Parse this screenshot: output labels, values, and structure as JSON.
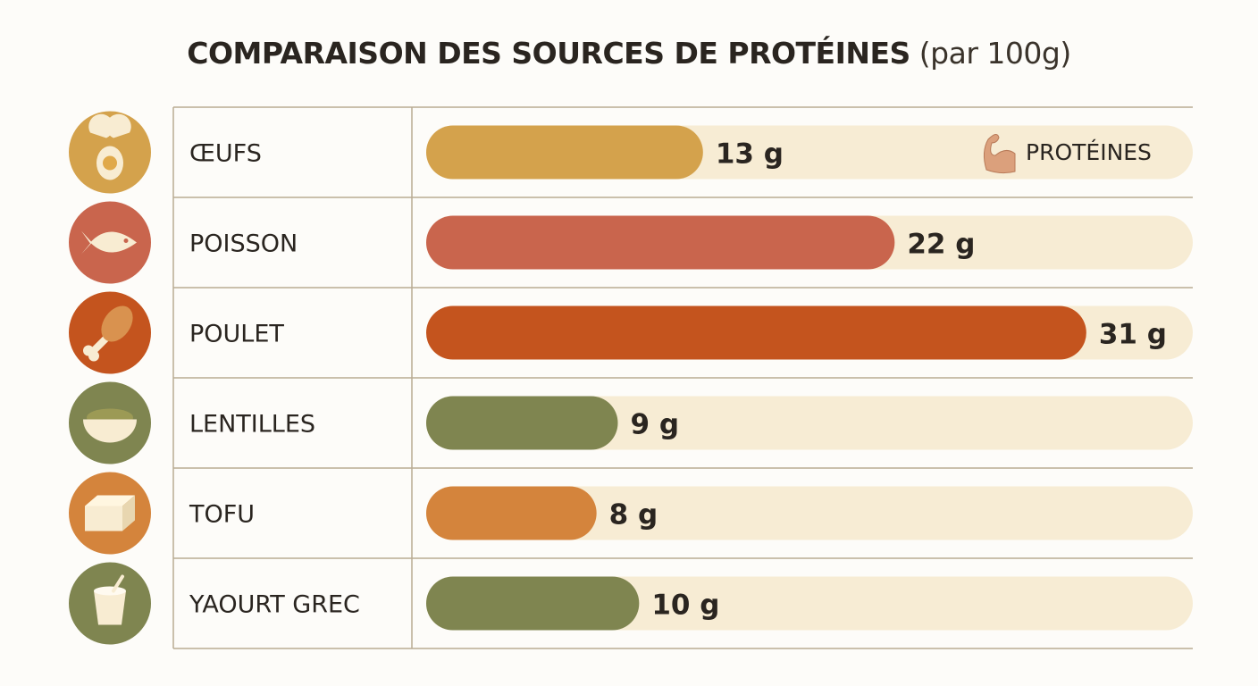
{
  "chart_data": {
    "type": "bar",
    "orientation": "horizontal",
    "title": "COMPARAISON DES SOURCES DE PROTÉINES",
    "subtitle": "(par 100g)",
    "categories": [
      "ŒUFS",
      "POISSON",
      "POULET",
      "LENTILLES",
      "TOFU",
      "YAOURT GREC"
    ],
    "icons": [
      "egg-icon",
      "fish-icon",
      "chicken-leg-icon",
      "lentil-bowl-icon",
      "tofu-icon",
      "yogurt-cup-icon"
    ],
    "values": [
      13,
      22,
      31,
      9,
      8,
      10
    ],
    "value_labels": [
      "13 g",
      "22 g",
      "31 g",
      "9 g",
      "8 g",
      "10 g"
    ],
    "unit": "g",
    "xlim": [
      0,
      36
    ],
    "colors": [
      "#d4a24c",
      "#c9654d",
      "#c4541e",
      "#7f8550",
      "#d4843c",
      "#7f8550"
    ],
    "track_color": "#f7ecd4",
    "legend": {
      "label": "PROTÉINES",
      "icon": "flexed-biceps-icon",
      "placement": "top-right"
    },
    "grid": false
  }
}
